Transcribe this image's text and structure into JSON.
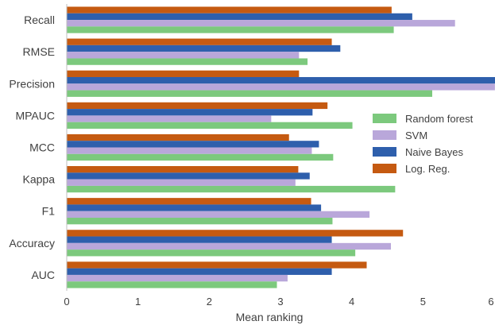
{
  "chart_data": {
    "type": "bar",
    "orientation": "horizontal",
    "xlabel": "Mean ranking",
    "ylabel": "",
    "xlim": [
      0,
      6
    ],
    "xticks": [
      0,
      1,
      2,
      3,
      4,
      5,
      6
    ],
    "grid": false,
    "legend_position": "right",
    "categories": [
      "Recall",
      "RMSE",
      "Precision",
      "MPAUC",
      "MCC",
      "Kappa",
      "F1",
      "Accuracy",
      "AUC"
    ],
    "series": [
      {
        "name": "Log. Reg.",
        "color": "#C55A11",
        "values": [
          4.56,
          3.72,
          3.26,
          3.66,
          3.12,
          3.25,
          3.43,
          4.72,
          4.21
        ]
      },
      {
        "name": "Naive Bayes",
        "color": "#2E5FAC",
        "values": [
          4.85,
          3.84,
          6.05,
          3.45,
          3.54,
          3.41,
          3.57,
          3.72,
          3.72
        ]
      },
      {
        "name": "SVM",
        "color": "#B9A7DA",
        "values": [
          5.45,
          3.26,
          6.01,
          2.87,
          3.44,
          3.21,
          4.25,
          4.55,
          3.1
        ]
      },
      {
        "name": "Random forest",
        "color": "#7CC97D",
        "values": [
          4.59,
          3.38,
          5.13,
          4.01,
          3.74,
          4.61,
          3.73,
          4.05,
          2.95
        ]
      }
    ],
    "legend_order": [
      "Random forest",
      "SVM",
      "Naive Bayes",
      "Log. Reg."
    ]
  }
}
